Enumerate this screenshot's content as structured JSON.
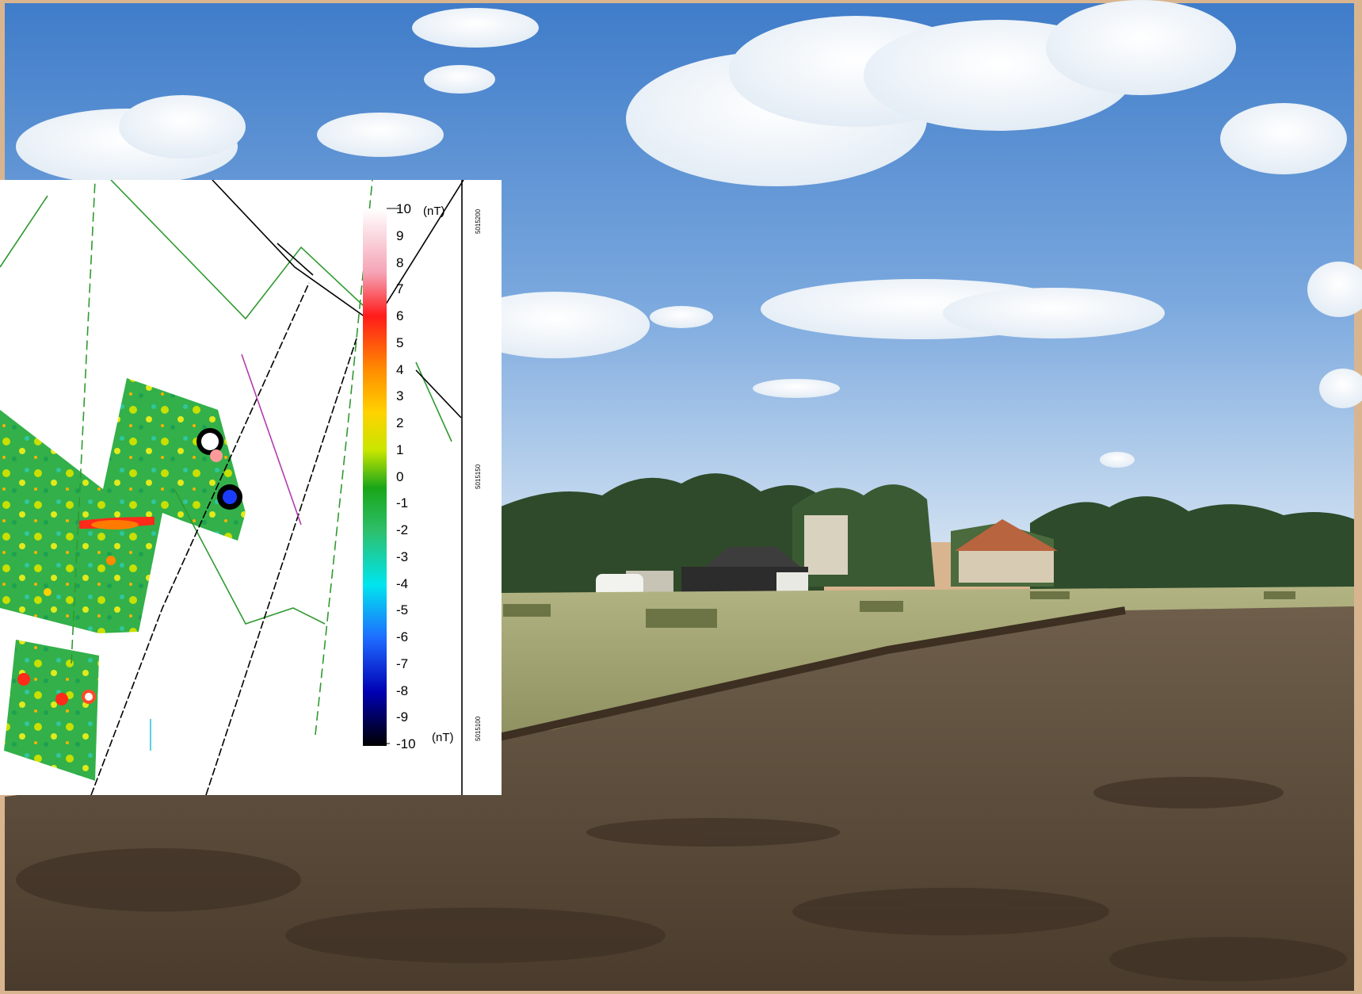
{
  "colorbar": {
    "unit_top": "(nT)",
    "unit_bottom": "(nT)",
    "ticks": [
      {
        "label": "10",
        "value": 10
      },
      {
        "label": "9",
        "value": 9
      },
      {
        "label": "8",
        "value": 8
      },
      {
        "label": "7",
        "value": 7
      },
      {
        "label": "6",
        "value": 6
      },
      {
        "label": "5",
        "value": 5
      },
      {
        "label": "4",
        "value": 4
      },
      {
        "label": "3",
        "value": 3
      },
      {
        "label": "2",
        "value": 2
      },
      {
        "label": "1",
        "value": 1
      },
      {
        "label": "0",
        "value": 0
      },
      {
        "label": "-1",
        "value": -1
      },
      {
        "label": "-2",
        "value": -2
      },
      {
        "label": "-3",
        "value": -3
      },
      {
        "label": "-4",
        "value": -4
      },
      {
        "label": "-5",
        "value": -5
      },
      {
        "label": "-6",
        "value": -6
      },
      {
        "label": "-7",
        "value": -7
      },
      {
        "label": "-8",
        "value": -8
      },
      {
        "label": "-9",
        "value": -9
      },
      {
        "label": "-10",
        "value": -10
      }
    ],
    "range": [
      -10,
      10
    ]
  },
  "coordinates": {
    "top": "5015200",
    "middle": "5015150",
    "bottom": "5015100"
  },
  "colors": {
    "sky_top": "#4f86cf",
    "sky_bottom": "#c9ddf2",
    "grass": "#a7aa6e",
    "soil": "#5c4d3c",
    "frame": "#d9b58f",
    "outline_green": "#2f9a2f",
    "outline_magenta": "#b03db0"
  }
}
